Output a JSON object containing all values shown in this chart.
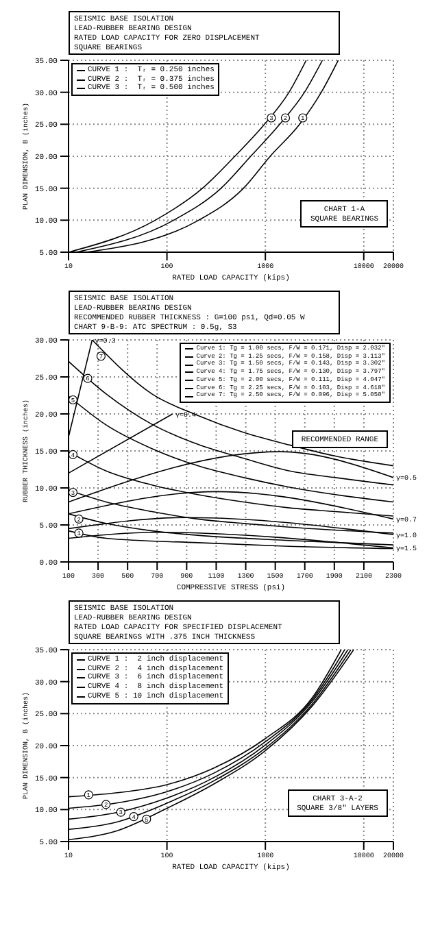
{
  "chart_data": [
    {
      "type": "line",
      "title": "SEISMIC BASE ISOLATION",
      "subtitle": "LEAD-RUBBER BEARING DESIGN\nRATED LOAD CAPACITY FOR ZERO DISPLACEMENT\nSQUARE BEARINGS",
      "xlabel": "RATED LOAD CAPACITY (kips)",
      "ylabel": "PLAN DIMENSION, B (inches)",
      "log": "x",
      "grid": true,
      "legend": "top left",
      "marker": "none",
      "line_style": "solid",
      "xlim": [
        10,
        20000
      ],
      "xticks": [
        10,
        100,
        1000,
        10000,
        20000
      ],
      "ylim": [
        5,
        35
      ],
      "yticks": [
        {
          "value": 5,
          "label": "5.00"
        },
        {
          "value": 10,
          "label": "10.00"
        },
        {
          "value": 15,
          "label": "15.00"
        },
        {
          "value": 20,
          "label": "20.00"
        },
        {
          "value": 25,
          "label": "25.00"
        },
        {
          "value": 30,
          "label": "30.00"
        },
        {
          "value": 35,
          "label": "35.00"
        }
      ],
      "series": [
        {
          "name": "CURVE 1 :  Tᵣ = 0.250 inches",
          "color": "#000000",
          "x": [
            15,
            210,
            600,
            1120,
            2230,
            3700,
            5500
          ],
          "values": [
            5,
            10,
            15,
            20,
            25,
            30,
            35
          ]
        },
        {
          "name": "CURVE 2 :  Tᵣ = 0.375 inches",
          "color": "#000000",
          "x": [
            12,
            117,
            355,
            710,
            1400,
            2500,
            3800
          ],
          "values": [
            5,
            10,
            15,
            20,
            25,
            30,
            35
          ]
        },
        {
          "name": "CURVE 3 :  Tᵣ = 0.500 inches",
          "color": "#000000",
          "x": [
            10,
            76,
            230,
            490,
            980,
            1740,
            2600
          ],
          "values": [
            5,
            10,
            15,
            20,
            25,
            30,
            35
          ]
        }
      ],
      "annotations": [
        "CHART 1-A",
        "SQUARE BEARINGS",
        {
          "text": "1",
          "x": 2400,
          "y": 26
        },
        {
          "text": "2",
          "x": 1600,
          "y": 26
        },
        {
          "text": "3",
          "x": 1150,
          "y": 26
        }
      ]
    },
    {
      "type": "line",
      "title": "SEISMIC BASE ISOLATION",
      "subtitle": "LEAD-RUBBER BEARING DESIGN\nRECOMMENDED RUBBER THICKNESS : G=100 psi, Qd=0.05 W\nCHART 9-B-9: ATC SPECTRUM : 0.5g, S3",
      "xlabel": "COMPRESSIVE STRESS (psi)",
      "ylabel": "RUBBER THICKNESS (inches)",
      "grid": true,
      "legend": "top right",
      "marker": "none",
      "line_style": "solid",
      "xlim": [
        100,
        2300
      ],
      "xticks": [
        100,
        300,
        500,
        700,
        900,
        1100,
        1300,
        1500,
        1700,
        1900,
        2100,
        2300
      ],
      "ylim": [
        0,
        30
      ],
      "yticks": [
        {
          "value": 0,
          "label": "0.00"
        },
        {
          "value": 5,
          "label": "5.00"
        },
        {
          "value": 10,
          "label": "10.00"
        },
        {
          "value": 15,
          "label": "15.00"
        },
        {
          "value": 20,
          "label": "20.00"
        },
        {
          "value": 25,
          "label": "25.00"
        },
        {
          "value": 30,
          "label": "30.00"
        }
      ],
      "series": [
        {
          "name": "Curve 1: Tg = 1.00 secs, F/W = 0.171, Disp = 2.032\"",
          "color": "#000000",
          "x": [
            100,
            355,
            975,
            1597,
            2300
          ],
          "values": [
            4.2,
            3.2,
            2.6,
            2.1,
            1.8
          ]
        },
        {
          "name": "Curve 2: Tg = 1.25 secs, F/W = 0.158, Disp = 3.113\"",
          "color": "#000000",
          "x": [
            100,
            355,
            665,
            975,
            1597,
            2300
          ],
          "values": [
            6.5,
            5.2,
            4.2,
            3.6,
            2.9,
            2.3
          ]
        },
        {
          "name": "Curve 3: Tg = 1.50 secs, F/W = 0.143, Disp = 3.302\"",
          "color": "#000000",
          "x": [
            100,
            355,
            665,
            975,
            1286,
            1597,
            2300
          ],
          "values": [
            9.7,
            8.1,
            6.8,
            5.8,
            5.2,
            4.7,
            3.9
          ]
        },
        {
          "name": "Curve 4: Tg = 1.75 secs, F/W = 0.130, Disp = 3.797\"",
          "color": "#000000",
          "x": [
            100,
            355,
            665,
            975,
            1286,
            1597,
            1907,
            2300
          ],
          "values": [
            14.9,
            12.3,
            10.4,
            9.1,
            8.1,
            7.3,
            6.8,
            6.2
          ]
        },
        {
          "name": "Curve 5: Tg = 2.00 secs, F/W = 0.111, Disp = 4.047\"",
          "color": "#000000",
          "x": [
            100,
            355,
            665,
            975,
            1286,
            1597,
            1907,
            2300
          ],
          "values": [
            22.4,
            18.5,
            15.3,
            13.0,
            11.4,
            10.1,
            9.1,
            8.1
          ]
        },
        {
          "name": "Curve 6: Tg = 2.25 secs, F/W = 0.103, Disp = 4.618\"",
          "color": "#000000",
          "x": [
            100,
            355,
            665,
            975,
            1286,
            1597,
            1907,
            2300
          ],
          "values": [
            27.1,
            22.7,
            18.6,
            15.9,
            14.0,
            12.3,
            11.4,
            10.4
          ]
        },
        {
          "name": "Curve 7: Tg = 2.50 secs, F/W = 0.096, Disp = 5.050\"",
          "color": "#000000",
          "x": [
            260,
            665,
            975,
            1286,
            1597,
            1907,
            2300
          ],
          "values": [
            30,
            22.7,
            19.8,
            17.5,
            15.8,
            14.3,
            13.0
          ]
        },
        {
          "color": "#000000",
          "x": [
            100,
            260
          ],
          "values": [
            16.9,
            30
          ]
        },
        {
          "color": "#000000",
          "x": [
            100,
            805
          ],
          "values": [
            12.0,
            20.0
          ]
        },
        {
          "color": "#000000",
          "x": [
            100,
            1535,
            2300
          ],
          "values": [
            8.1,
            14.9,
            11.4
          ]
        },
        {
          "color": "#000000",
          "x": [
            100,
            1100,
            2300
          ],
          "values": [
            6.5,
            9.5,
            5.8
          ]
        },
        {
          "color": "#000000",
          "x": [
            100,
            900,
            2300
          ],
          "values": [
            4.5,
            6.0,
            3.7
          ]
        },
        {
          "color": "#000000",
          "x": [
            100,
            700,
            2300
          ],
          "values": [
            3.2,
            4.0,
            1.9
          ]
        }
      ],
      "annotations": [
        "RECOMMENDED RANGE",
        {
          "text": "γ=0.3",
          "x": 260,
          "y": 30
        },
        {
          "text": "γ=0.4",
          "x": 805,
          "y": 20
        },
        {
          "text": "γ=0.5",
          "x": 2300,
          "y": 11.4
        },
        {
          "text": "γ=0.7",
          "x": 2300,
          "y": 5.8
        },
        {
          "text": "γ=1.0",
          "x": 2300,
          "y": 3.7
        },
        {
          "text": "γ=1.5",
          "x": 2300,
          "y": 1.9
        },
        {
          "text": "1",
          "x": 170,
          "y": 3.9
        },
        {
          "text": "2",
          "x": 170,
          "y": 5.8
        },
        {
          "text": "3",
          "x": 130,
          "y": 9.4
        },
        {
          "text": "4",
          "x": 130,
          "y": 14.5
        },
        {
          "text": "5",
          "x": 130,
          "y": 21.9
        },
        {
          "text": "6",
          "x": 230,
          "y": 24.8
        },
        {
          "text": "7",
          "x": 320,
          "y": 27.8
        }
      ]
    },
    {
      "type": "line",
      "title": "SEISMIC BASE ISOLATION",
      "subtitle": "LEAD-RUBBER BEARING DESIGN\nRATED LOAD CAPACITY FOR SPECIFIED DISPLACEMENT\nSQUARE BEARINGS WITH .375 INCH THICKNESS",
      "xlabel": "RATED LOAD CAPACITY (kips)",
      "ylabel": "PLAN DIMENSION, B (inches)",
      "log": "x",
      "grid": true,
      "legend": "top left",
      "marker": "none",
      "line_style": "solid",
      "xlim": [
        10,
        20000
      ],
      "xticks": [
        10,
        100,
        1000,
        10000,
        20000
      ],
      "ylim": [
        5,
        35
      ],
      "yticks": [
        {
          "value": 5,
          "label": "5.00"
        },
        {
          "value": 10,
          "label": "10.00"
        },
        {
          "value": 15,
          "label": "15.00"
        },
        {
          "value": 20,
          "label": "20.00"
        },
        {
          "value": 25,
          "label": "25.00"
        },
        {
          "value": 30,
          "label": "30.00"
        },
        {
          "value": 35,
          "label": "35.00"
        }
      ],
      "series": [
        {
          "name": "CURVE 1 :  2 inch displacement",
          "color": "#000000",
          "x": [
            10,
            30,
            100,
            300,
            1000,
            3000,
            5900
          ],
          "values": [
            12.0,
            12.6,
            13.9,
            16.5,
            21.1,
            27.5,
            35
          ]
        },
        {
          "name": "CURVE 2 :  4 inch displacement",
          "color": "#000000",
          "x": [
            10,
            30,
            100,
            300,
            1000,
            3000,
            6400
          ],
          "values": [
            10.2,
            11.0,
            12.8,
            15.7,
            20.6,
            27.2,
            35
          ]
        },
        {
          "name": "CURVE 3 :  6 inch displacement",
          "color": "#000000",
          "x": [
            10,
            30,
            100,
            300,
            1000,
            3000,
            6900
          ],
          "values": [
            8.5,
            9.5,
            11.8,
            15.0,
            20.1,
            26.9,
            35
          ]
        },
        {
          "name": "CURVE 4 :  8 inch displacement",
          "color": "#000000",
          "x": [
            10,
            30,
            100,
            300,
            1000,
            3000,
            7400
          ],
          "values": [
            6.9,
            8.0,
            11.0,
            14.5,
            19.6,
            26.5,
            35
          ]
        },
        {
          "name": "CURVE 5 : 10 inch displacement",
          "color": "#000000",
          "x": [
            10,
            30,
            100,
            300,
            1000,
            3000,
            7900
          ],
          "values": [
            5.3,
            6.6,
            10.2,
            14.0,
            19.2,
            26.2,
            35
          ]
        }
      ],
      "annotations": [
        "CHART 3-A-2",
        "SQUARE 3/8\" LAYERS",
        {
          "text": "1",
          "x": 16,
          "y": 12.3
        },
        {
          "text": "2",
          "x": 24,
          "y": 10.8
        },
        {
          "text": "3",
          "x": 34,
          "y": 9.6
        },
        {
          "text": "4",
          "x": 46,
          "y": 8.9
        },
        {
          "text": "5",
          "x": 62,
          "y": 8.5
        }
      ]
    }
  ]
}
